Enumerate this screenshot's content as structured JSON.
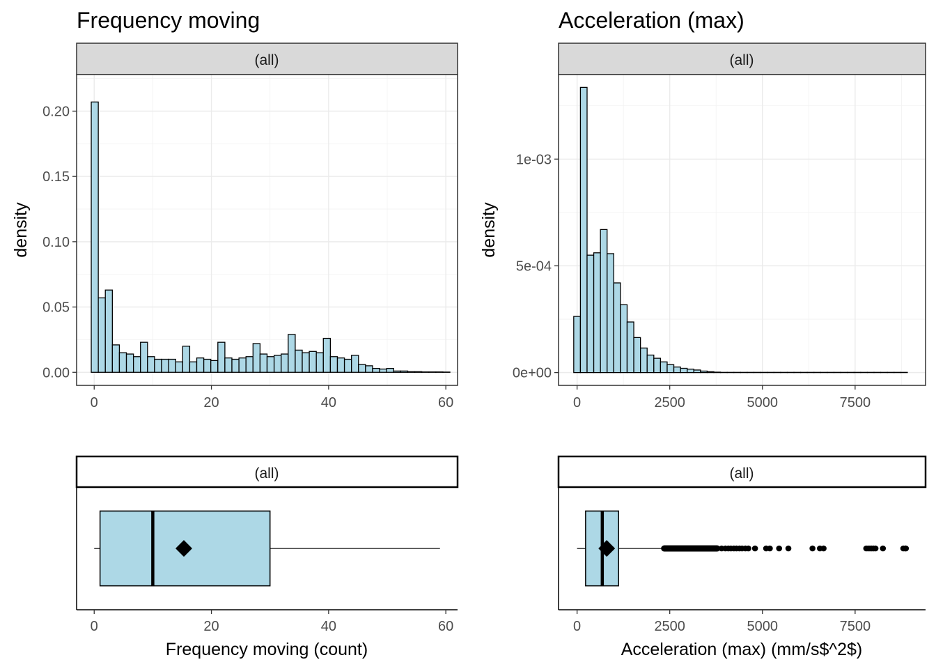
{
  "chart_data": [
    {
      "type": "histogram",
      "title": "Frequency moving",
      "strip": "(all)",
      "ylabel": "density",
      "xlim": [
        -3,
        62
      ],
      "ylim": [
        -0.01,
        0.228
      ],
      "x_ticks": [
        0,
        20,
        40,
        60
      ],
      "y_ticks": [
        0.0,
        0.05,
        0.1,
        0.15,
        0.2
      ],
      "x_tick_labels": [
        "0",
        "20",
        "40",
        "60"
      ],
      "y_tick_labels": [
        "0.00",
        "0.05",
        "0.10",
        "0.15",
        "0.20"
      ],
      "grid": true,
      "fill_color": "#add8e6",
      "bin_start": -0.5,
      "bin_width": 1.2,
      "densities": [
        0.207,
        0.057,
        0.063,
        0.021,
        0.015,
        0.014,
        0.012,
        0.023,
        0.012,
        0.01,
        0.01,
        0.01,
        0.008,
        0.02,
        0.008,
        0.011,
        0.01,
        0.009,
        0.023,
        0.011,
        0.01,
        0.011,
        0.012,
        0.022,
        0.014,
        0.012,
        0.013,
        0.014,
        0.029,
        0.017,
        0.015,
        0.016,
        0.015,
        0.026,
        0.012,
        0.011,
        0.01,
        0.013,
        0.006,
        0.005,
        0.003,
        0.0025,
        0.003,
        0.001,
        0.001,
        0.0005,
        0.0005,
        0.0003,
        0.0003,
        0.0003,
        0.0002
      ]
    },
    {
      "type": "histogram",
      "title": "Acceleration (max)",
      "strip": "(all)",
      "ylabel": "density",
      "xlim": [
        -500,
        9400
      ],
      "ylim": [
        -6e-05,
        0.001396
      ],
      "x_ticks": [
        0,
        2500,
        5000,
        7500
      ],
      "y_ticks": [
        0.0,
        0.0005,
        0.001
      ],
      "x_tick_labels": [
        "0",
        "2500",
        "5000",
        "7500"
      ],
      "y_tick_labels": [
        "0e+00",
        "5e-04",
        "1e-03"
      ],
      "grid": true,
      "fill_color": "#add8e6",
      "bin_start": -90,
      "bin_width": 180,
      "densities": [
        0.000263,
        0.001336,
        0.00055,
        0.000561,
        0.00067,
        0.000557,
        0.00042,
        0.000318,
        0.000237,
        0.000164,
        0.000115,
        8.2e-05,
        6.7e-05,
        5e-05,
        3.7e-05,
        2.6e-05,
        2e-05,
        1.6e-05,
        1.2e-05,
        7e-06,
        4e-06,
        2e-06,
        1e-06,
        1e-06,
        1e-06,
        1e-06,
        1e-06,
        1e-06,
        1e-06,
        1e-06,
        1e-06,
        1e-06,
        1e-06,
        1e-06,
        1e-06,
        1e-06,
        1e-06,
        1e-06,
        1e-06,
        1e-06,
        1e-06,
        1e-06,
        1e-06,
        1e-06,
        1e-06,
        1e-06,
        1e-06,
        1e-06,
        1e-06,
        1e-06
      ]
    },
    {
      "type": "boxplot",
      "strip": "(all)",
      "xlabel": "Frequency moving (count)",
      "xlim": [
        -3,
        62
      ],
      "x_ticks": [
        0,
        20,
        40,
        60
      ],
      "x_tick_labels": [
        "0",
        "20",
        "40",
        "60"
      ],
      "fill_color": "#add8e6",
      "min": 0,
      "q1": 1,
      "median": 10,
      "q3": 30,
      "max": 59,
      "mean": 15.3,
      "outliers": []
    },
    {
      "type": "boxplot",
      "strip": "(all)",
      "xlabel": "Acceleration (max) (mm/s$^2$)",
      "xlim": [
        -500,
        9400
      ],
      "x_ticks": [
        0,
        2500,
        5000,
        7500
      ],
      "x_tick_labels": [
        "0",
        "2500",
        "5000",
        "7500"
      ],
      "fill_color": "#add8e6",
      "min": 0,
      "q1": 230,
      "median": 680,
      "q3": 1120,
      "max": 2350,
      "mean": 800,
      "outlier_dense_range": [
        2350,
        3780
      ],
      "outliers": [
        3900,
        4000,
        4080,
        4150,
        4230,
        4300,
        4380,
        4450,
        4540,
        4620,
        4800,
        5100,
        5200,
        5450,
        5700,
        6350,
        6550,
        6650,
        7800,
        7850,
        7900,
        7950,
        8000,
        8050,
        8250,
        8800,
        8850,
        8870
      ]
    }
  ]
}
